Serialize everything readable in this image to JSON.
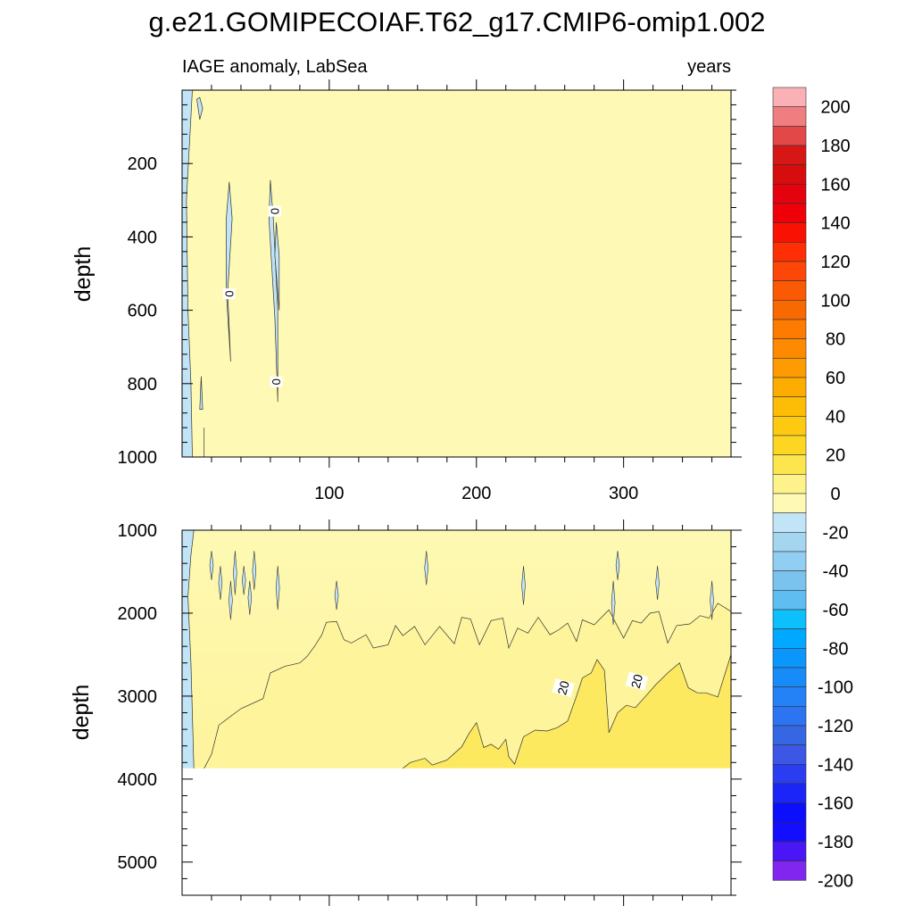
{
  "figure": {
    "title": "g.e21.GOMIPECOIAF.T62_g17.CMIP6-omip1.002",
    "left_label": "IAGE anomaly, LabSea",
    "right_label": "years"
  },
  "chart_data": {
    "type": "heatmap",
    "title": "g.e21.GOMIPECOIAF.T62_g17.CMIP6-omip1.002",
    "subtitle_left": "IAGE anomaly, LabSea",
    "subtitle_right": "years",
    "x": {
      "label": "",
      "range": [
        0,
        373
      ],
      "ticks": [
        100,
        200,
        300
      ],
      "tick_labels": [
        "100",
        "200",
        "300"
      ]
    },
    "panels": [
      {
        "name": "upper",
        "y_label": "depth",
        "y_range": [
          0,
          1000
        ],
        "y_inverted": true,
        "y_ticks": [
          200,
          400,
          600,
          800,
          1000
        ],
        "y_tick_labels": [
          "200",
          "400",
          "600",
          "800",
          "1000"
        ],
        "contour_labels": [
          {
            "text": "0",
            "x": 63,
            "y": 330
          },
          {
            "text": "0",
            "x": 32,
            "y": 555
          },
          {
            "text": "0",
            "x": 64,
            "y": 795
          }
        ],
        "regions": [
          {
            "range": [
              -10,
              0
            ],
            "desc": "negative band near year 0-7, full depth"
          },
          {
            "range": [
              0,
              10
            ],
            "desc": "remainder of panel"
          }
        ]
      },
      {
        "name": "lower",
        "y_label": "depth",
        "y_range": [
          1000,
          5400
        ],
        "y_inverted": true,
        "y_ticks": [
          1000,
          2000,
          3000,
          4000,
          5000
        ],
        "y_tick_labels": [
          "1000",
          "2000",
          "3000",
          "4000",
          "5000"
        ],
        "data_floor_depth": 3870,
        "contour_labels": [
          {
            "text": "20",
            "x": 259,
            "y": 2900
          },
          {
            "text": "20",
            "x": 309,
            "y": 2820
          }
        ],
        "contour_10": [
          [
            15,
            3870
          ],
          [
            20,
            3700
          ],
          [
            25,
            3350
          ],
          [
            40,
            3150
          ],
          [
            55,
            3030
          ],
          [
            60,
            2720
          ],
          [
            70,
            2640
          ],
          [
            80,
            2600
          ],
          [
            85,
            2520
          ],
          [
            90,
            2400
          ],
          [
            95,
            2260
          ],
          [
            98,
            2110
          ],
          [
            105,
            2100
          ],
          [
            110,
            2320
          ],
          [
            115,
            2360
          ],
          [
            125,
            2260
          ],
          [
            130,
            2420
          ],
          [
            140,
            2380
          ],
          [
            145,
            2150
          ],
          [
            150,
            2270
          ],
          [
            158,
            2160
          ],
          [
            165,
            2380
          ],
          [
            175,
            2160
          ],
          [
            185,
            2370
          ],
          [
            190,
            2050
          ],
          [
            196,
            2070
          ],
          [
            202,
            2380
          ],
          [
            210,
            2090
          ],
          [
            218,
            2060
          ],
          [
            222,
            2420
          ],
          [
            228,
            2180
          ],
          [
            235,
            2240
          ],
          [
            242,
            2050
          ],
          [
            250,
            2260
          ],
          [
            256,
            2200
          ],
          [
            262,
            2120
          ],
          [
            268,
            2340
          ],
          [
            272,
            2080
          ],
          [
            280,
            2140
          ],
          [
            290,
            1960
          ],
          [
            300,
            2300
          ],
          [
            306,
            2090
          ],
          [
            312,
            2120
          ],
          [
            318,
            2000
          ],
          [
            324,
            1980
          ],
          [
            330,
            2360
          ],
          [
            336,
            2150
          ],
          [
            345,
            2130
          ],
          [
            352,
            2030
          ],
          [
            358,
            2060
          ],
          [
            364,
            1880
          ],
          [
            373,
            1980
          ]
        ],
        "contour_20": [
          [
            150,
            3870
          ],
          [
            155,
            3800
          ],
          [
            165,
            3750
          ],
          [
            170,
            3830
          ],
          [
            180,
            3770
          ],
          [
            190,
            3610
          ],
          [
            195,
            3450
          ],
          [
            200,
            3320
          ],
          [
            205,
            3620
          ],
          [
            210,
            3580
          ],
          [
            215,
            3640
          ],
          [
            220,
            3520
          ],
          [
            222,
            3730
          ],
          [
            226,
            3820
          ],
          [
            232,
            3490
          ],
          [
            240,
            3410
          ],
          [
            248,
            3420
          ],
          [
            255,
            3380
          ],
          [
            262,
            3300
          ],
          [
            268,
            3000
          ],
          [
            272,
            2780
          ],
          [
            278,
            2720
          ],
          [
            282,
            2560
          ],
          [
            287,
            2690
          ],
          [
            290,
            3440
          ],
          [
            296,
            3200
          ],
          [
            302,
            3110
          ],
          [
            308,
            3140
          ],
          [
            314,
            3020
          ],
          [
            322,
            2860
          ],
          [
            330,
            2720
          ],
          [
            338,
            2600
          ],
          [
            344,
            2900
          ],
          [
            350,
            2960
          ],
          [
            356,
            2960
          ],
          [
            364,
            3010
          ],
          [
            368,
            2780
          ],
          [
            373,
            2500
          ]
        ],
        "negative_streaks_x": [
          20,
          26,
          33,
          36,
          42,
          46,
          49,
          65,
          105,
          166,
          232,
          293,
          296,
          323,
          360
        ],
        "regions": [
          {
            "range": [
              -10,
              0
            ],
            "desc": "negative band near year 0-8 above 3870 m"
          },
          {
            "range": [
              0,
              10
            ],
            "desc": "upper part"
          },
          {
            "range": [
              10,
              20
            ],
            "desc": "middle part"
          },
          {
            "range": [
              20,
              30
            ],
            "desc": "deep part, later years"
          }
        ]
      }
    ],
    "colorbar": {
      "levels": [
        -210,
        -200,
        -190,
        -180,
        -170,
        -160,
        -150,
        -140,
        -130,
        -120,
        -110,
        -100,
        -90,
        -80,
        -70,
        -60,
        -50,
        -40,
        -30,
        -20,
        -10,
        0,
        10,
        20,
        30,
        40,
        50,
        60,
        70,
        80,
        90,
        100,
        110,
        120,
        130,
        140,
        150,
        160,
        170,
        180,
        190,
        200,
        210
      ],
      "tick_values": [
        200,
        180,
        160,
        140,
        120,
        100,
        80,
        60,
        40,
        20,
        0,
        -20,
        -40,
        -60,
        -80,
        -100,
        -120,
        -140,
        -160,
        -180,
        -200
      ],
      "tick_labels": [
        "200",
        "180",
        "160",
        "140",
        "120",
        "100",
        "80",
        "60",
        "40",
        "20",
        "0",
        "-20",
        "-40",
        "-60",
        "-80",
        "-100",
        "-120",
        "-140",
        "-160",
        "-180",
        "-200"
      ],
      "colors_top_to_bottom": [
        "#f9b1b5",
        "#f07d7f",
        "#e34849",
        "#d71715",
        "#d60d0c",
        "#e3020e",
        "#ef0009",
        "#f91103",
        "#fe2f04",
        "#fd4708",
        "#fb5a04",
        "#f96901",
        "#fc7b00",
        "#fe8a02",
        "#fe9a02",
        "#fdac00",
        "#fdbc06",
        "#fdca11",
        "#fdd624",
        "#fde64d",
        "#fdf38a",
        "#fefab6",
        "#c1e4f7",
        "#a4d6ef",
        "#91cef1",
        "#7ac3ef",
        "#5fbdf1",
        "#0dbffb",
        "#01a8ff",
        "#0a96fb",
        "#178cf9",
        "#2481f6",
        "#2c74f2",
        "#3566e4",
        "#3c57e5",
        "#2b3df0",
        "#1b25f7",
        "#0b0ffb",
        "#140eff",
        "#4b16f6",
        "#8126ee"
      ]
    }
  }
}
